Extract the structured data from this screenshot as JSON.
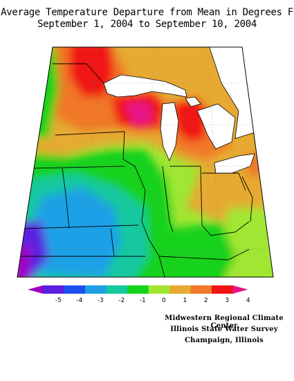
{
  "map": {
    "title_line1": "Average Temperature Departure from Mean in Degrees F",
    "title_line2": "September 1, 2004 to September 10, 2004"
  },
  "legend": {
    "ticks": [
      "-5",
      "-4",
      "-3",
      "-2",
      "-1",
      "0",
      "1",
      "2",
      "3",
      "4"
    ],
    "colors": [
      "#a000c8",
      "#5a20e0",
      "#1e50f0",
      "#1ea0e6",
      "#14c8a0",
      "#14d21e",
      "#a0e632",
      "#e6aa32",
      "#f07828",
      "#f01414",
      "#e6148c"
    ]
  },
  "credits": {
    "line1": "Midwestern Regional Climate Center",
    "line2": "Illinois State Water Survey",
    "line3": "Champaign, Illinois"
  }
}
